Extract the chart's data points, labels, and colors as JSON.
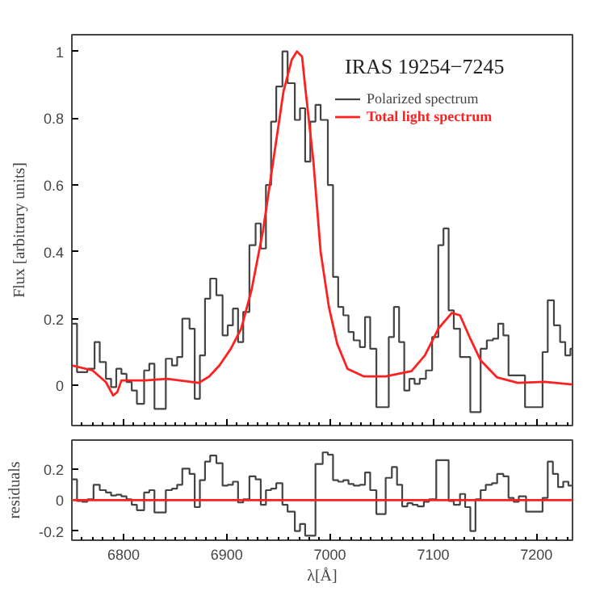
{
  "chart_data": [
    {
      "type": "step",
      "ylabel": "Flux [arbitrary units]",
      "annotations": [
        "IRAS 19254−7245"
      ],
      "legend": "top right",
      "tick_labels": "y",
      "xlim": [
        6750,
        7235
      ],
      "ylim": [
        -0.12,
        1.05
      ],
      "xticks": [
        6800,
        6900,
        7000,
        7100,
        7200
      ],
      "yticks": [
        0,
        0.2,
        0.4,
        0.6,
        0.8,
        1
      ],
      "series": [
        {
          "name": "Polarized spectrum",
          "color": "#444444",
          "x": [
            6750,
            6755,
            6760,
            6765,
            6772,
            6777,
            6783,
            6788,
            6793,
            6798,
            6803,
            6808,
            6813,
            6820,
            6825,
            6830,
            6841,
            6847,
            6852,
            6857,
            6864,
            6869,
            6874,
            6879,
            6884,
            6890,
            6896,
            6901,
            6906,
            6911,
            6916,
            6922,
            6928,
            6933,
            6938,
            6943,
            6948,
            6954,
            6959,
            6966,
            6971,
            6976,
            6981,
            6986,
            6991,
            6998,
            7003,
            7008,
            7013,
            7018,
            7023,
            7029,
            7034,
            7039,
            7045,
            7057,
            7062,
            7067,
            7072,
            7077,
            7082,
            7087,
            7093,
            7099,
            7105,
            7110,
            7115,
            7120,
            7126,
            7136,
            7146,
            7152,
            7158,
            7163,
            7168,
            7173,
            7189,
            7206,
            7211,
            7217,
            7223,
            7228,
            7233,
            7235
          ],
          "values": [
            0.185,
            0.04,
            0.04,
            0.05,
            0.13,
            0.07,
            0.02,
            -0.005,
            0.05,
            0.035,
            0.01,
            -0.015,
            -0.055,
            0.045,
            0.065,
            -0.07,
            0.08,
            0.06,
            0.085,
            0.2,
            0.17,
            -0.04,
            0.09,
            0.26,
            0.32,
            0.27,
            0.15,
            0.18,
            0.23,
            0.13,
            0.22,
            0.42,
            0.485,
            0.41,
            0.6,
            0.79,
            0.895,
            1.0,
            0.905,
            0.795,
            0.83,
            0.67,
            0.79,
            0.84,
            0.795,
            0.6,
            0.325,
            0.235,
            0.21,
            0.16,
            0.135,
            0.115,
            0.205,
            0.11,
            -0.065,
            0.145,
            0.235,
            0.13,
            -0.015,
            0.02,
            0.005,
            0.02,
            0.045,
            0.145,
            0.42,
            0.47,
            0.225,
            0.17,
            0.085,
            -0.08,
            0.11,
            0.135,
            0.14,
            0.185,
            0.15,
            0.03,
            -0.065,
            0.1,
            0.255,
            0.18,
            0.13,
            0.09,
            0.11,
            0.11
          ]
        },
        {
          "name": "Total light spectrum",
          "type": "line",
          "color": "#ff2020",
          "x": [
            6750,
            6770,
            6783,
            6790,
            6794,
            6798,
            6821,
            6842,
            6873,
            6883,
            6893,
            6904,
            6914,
            6924,
            6935,
            6945,
            6955,
            6963,
            6968,
            6973,
            6976,
            6984,
            6991,
            6999,
            7007,
            7017,
            7033,
            7054,
            7079,
            7092,
            7105,
            7118,
            7126,
            7136,
            7146,
            7162,
            7182,
            7208,
            7235
          ],
          "values": [
            0.06,
            0.045,
            0.01,
            -0.03,
            -0.02,
            0.015,
            0.015,
            0.02,
            0.008,
            0.027,
            0.06,
            0.11,
            0.17,
            0.285,
            0.46,
            0.67,
            0.88,
            0.975,
            1.0,
            0.985,
            0.895,
            0.67,
            0.4,
            0.235,
            0.125,
            0.05,
            0.027,
            0.027,
            0.043,
            0.09,
            0.17,
            0.217,
            0.21,
            0.14,
            0.075,
            0.024,
            0.008,
            0.011,
            0.003
          ]
        }
      ]
    },
    {
      "type": "step",
      "xlabel": "λ[Å]",
      "ylabel": "residuals",
      "xlim": [
        6750,
        7235
      ],
      "ylim": [
        -0.26,
        0.39
      ],
      "xticks": [
        6800,
        6900,
        7000,
        7100,
        7200
      ],
      "yticks": [
        -0.2,
        0,
        0.2
      ],
      "ref_lines": [
        {
          "axis": "y",
          "value": 0,
          "color": "#ff2020"
        }
      ],
      "series": [
        {
          "color": "#444444",
          "x": [
            6750,
            6755,
            6760,
            6765,
            6771,
            6777,
            6783,
            6788,
            6793,
            6798,
            6803,
            6808,
            6813,
            6820,
            6825,
            6830,
            6841,
            6847,
            6852,
            6857,
            6864,
            6869,
            6874,
            6879,
            6884,
            6890,
            6896,
            6901,
            6906,
            6911,
            6916,
            6922,
            6928,
            6933,
            6938,
            6943,
            6948,
            6954,
            6959,
            6966,
            6971,
            6976,
            6986,
            6993,
            6998,
            7003,
            7008,
            7013,
            7018,
            7023,
            7029,
            7034,
            7039,
            7045,
            7054,
            7060,
            7065,
            7070,
            7075,
            7080,
            7085,
            7091,
            7096,
            7103,
            7115,
            7120,
            7126,
            7131,
            7136,
            7141,
            7146,
            7151,
            7157,
            7162,
            7168,
            7173,
            7178,
            7183,
            7190,
            7206,
            7211,
            7216,
            7221,
            7226,
            7231,
            7235
          ],
          "values": [
            0.135,
            -0.005,
            -0.01,
            0.005,
            0.1,
            0.065,
            0.05,
            0.03,
            0.035,
            0.025,
            0.005,
            -0.03,
            -0.065,
            0.05,
            0.065,
            -0.08,
            0.065,
            0.075,
            0.1,
            0.205,
            0.17,
            -0.045,
            0.13,
            0.25,
            0.29,
            0.24,
            0.095,
            0.1,
            0.12,
            -0.015,
            0.005,
            0.155,
            0.135,
            -0.03,
            0.065,
            0.075,
            0.11,
            -0.03,
            -0.075,
            -0.2,
            -0.155,
            -0.23,
            0.235,
            0.31,
            0.295,
            0.13,
            0.12,
            0.13,
            0.105,
            0.095,
            0.1,
            0.18,
            0.065,
            -0.09,
            0.145,
            0.215,
            0.1,
            -0.04,
            -0.02,
            -0.03,
            -0.04,
            -0.01,
            0.005,
            0.26,
            -0.005,
            -0.03,
            0.04,
            -0.045,
            -0.2,
            0.005,
            0.065,
            0.1,
            0.11,
            0.17,
            0.155,
            0.015,
            -0.01,
            0.025,
            -0.075,
            0.015,
            0.25,
            0.17,
            0.085,
            0.12,
            0.095,
            0.095
          ]
        }
      ]
    }
  ]
}
